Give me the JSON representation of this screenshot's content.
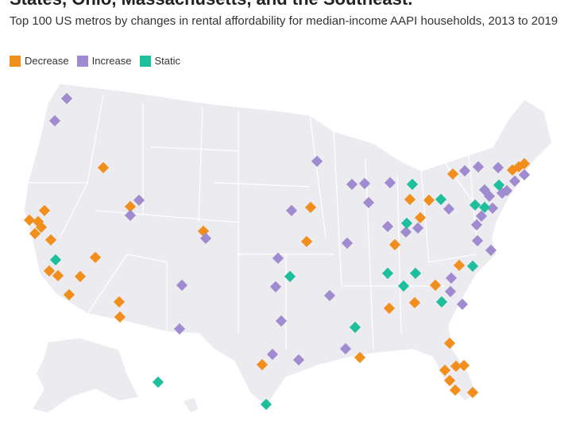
{
  "headline": "States, Ohio, Massachusetts, and the Southeast.",
  "subtitle": "Top 100 US metros by changes in rental affordability for median-income AAPI households, 2013 to 2019",
  "legend": [
    {
      "label": "Decrease",
      "color": "#f28e1c"
    },
    {
      "label": "Increase",
      "color": "#a08bd0"
    },
    {
      "label": "Static",
      "color": "#1dbf9c"
    }
  ],
  "map": {
    "land_color": "#ecebef",
    "border_color": "#ffffff"
  }
}
